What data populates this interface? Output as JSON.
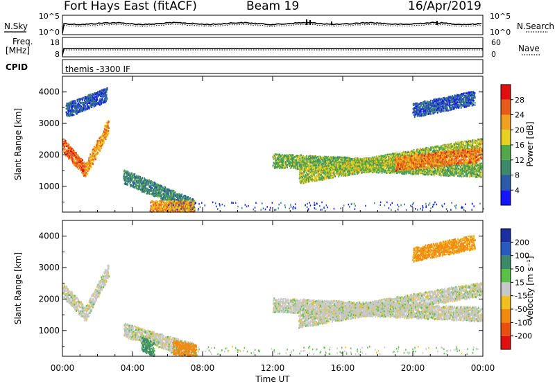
{
  "header": {
    "station": "Fort Hays East (fitACF)",
    "beam": "Beam 19",
    "date": "16/Apr/2019"
  },
  "strips": {
    "nsky_label": "N.Sky",
    "nsearch_label": "N.Search",
    "noise_ticks": [
      "10^5",
      "10^0"
    ],
    "freq_label_1": "Freq.",
    "freq_label_2": "[MHz]",
    "freq_ticks": [
      "18",
      "8"
    ],
    "nave_label": "Nave",
    "nave_ticks": [
      "60",
      "0"
    ],
    "cpid_label": "CPID",
    "cpid_text": "themis -3300 IF"
  },
  "axes": {
    "ylabel": "Slant Range [km]",
    "xlabel": "Time UT",
    "y_ticks": [
      "4000",
      "3000",
      "2000",
      "1000"
    ],
    "x_ticks": [
      "00:00",
      "04:00",
      "08:00",
      "12:00",
      "16:00",
      "20:00",
      "00:00"
    ]
  },
  "colorbars": {
    "power_label": "Power [dB]",
    "power_ticks": [
      "28",
      "24",
      "20",
      "16",
      "12",
      "8",
      "4"
    ],
    "velocity_label": "Velocity [m s⁻¹]",
    "velocity_ticks": [
      "200",
      "100",
      "50",
      "15",
      "-15",
      "-50",
      "-100",
      "-200"
    ],
    "power_colors": [
      "#1414ff",
      "#2a5aa8",
      "#3c8a6a",
      "#52a848",
      "#e8d020",
      "#f0a020",
      "#e85a18",
      "#e01010"
    ],
    "velocity_colors": [
      "#1a2fa0",
      "#2a5ac0",
      "#3c8a6a",
      "#5ac048",
      "#c8c8c8",
      "#f0c020",
      "#f08a10",
      "#e85010",
      "#e01010"
    ]
  },
  "chart_data": [
    {
      "type": "heatmap",
      "name": "Power",
      "x_range": [
        "00:00",
        "24:00"
      ],
      "ylim": [
        180,
        4500
      ],
      "scatter_bands": [
        {
          "t_start": 0.0,
          "t_end": 1.3,
          "range_start": 2300,
          "range_end": 1500,
          "level": 26
        },
        {
          "t_start": 1.3,
          "t_end": 2.6,
          "range_start": 1500,
          "range_end": 2900,
          "level": 22
        },
        {
          "t_start": 0.2,
          "t_end": 2.5,
          "range_start": 3400,
          "range_end": 3900,
          "level": 6
        },
        {
          "t_start": 3.5,
          "t_end": 7.5,
          "range_start": 1300,
          "range_end": 350,
          "level": 10
        },
        {
          "t_start": 5.0,
          "t_end": 7.5,
          "range_start": 300,
          "range_end": 300,
          "level": 22
        },
        {
          "t_start": 12.0,
          "t_end": 23.9,
          "range_start": 1800,
          "range_end": 1500,
          "level": 14
        },
        {
          "t_start": 13.5,
          "t_end": 23.9,
          "range_start": 1300,
          "range_end": 2300,
          "level": 16
        },
        {
          "t_start": 19.0,
          "t_end": 23.9,
          "range_start": 1700,
          "range_end": 2000,
          "level": 24
        },
        {
          "t_start": 20.0,
          "t_end": 23.5,
          "range_start": 3400,
          "range_end": 3800,
          "level": 6
        }
      ]
    },
    {
      "type": "heatmap",
      "name": "Velocity",
      "x_range": [
        "00:00",
        "24:00"
      ],
      "ylim": [
        180,
        4500
      ],
      "scatter_bands": [
        {
          "t_start": 0.0,
          "t_end": 1.3,
          "range_start": 2300,
          "range_end": 1500,
          "level": 0
        },
        {
          "t_start": 1.3,
          "t_end": 2.6,
          "range_start": 1500,
          "range_end": 2900,
          "level": 0
        },
        {
          "t_start": 3.5,
          "t_end": 7.5,
          "range_start": 1000,
          "range_end": 350,
          "level": 0
        },
        {
          "t_start": 4.5,
          "t_end": 5.2,
          "range_start": 550,
          "range_end": 400,
          "level": 60
        },
        {
          "t_start": 6.3,
          "t_end": 7.6,
          "range_start": 450,
          "range_end": 320,
          "level": -80
        },
        {
          "t_start": 12.0,
          "t_end": 23.9,
          "range_start": 1800,
          "range_end": 1500,
          "level": 0
        },
        {
          "t_start": 13.5,
          "t_end": 23.9,
          "range_start": 1300,
          "range_end": 2300,
          "level": 0
        },
        {
          "t_start": 20.0,
          "t_end": 23.5,
          "range_start": 3400,
          "range_end": 3800,
          "level": -60
        }
      ]
    }
  ]
}
